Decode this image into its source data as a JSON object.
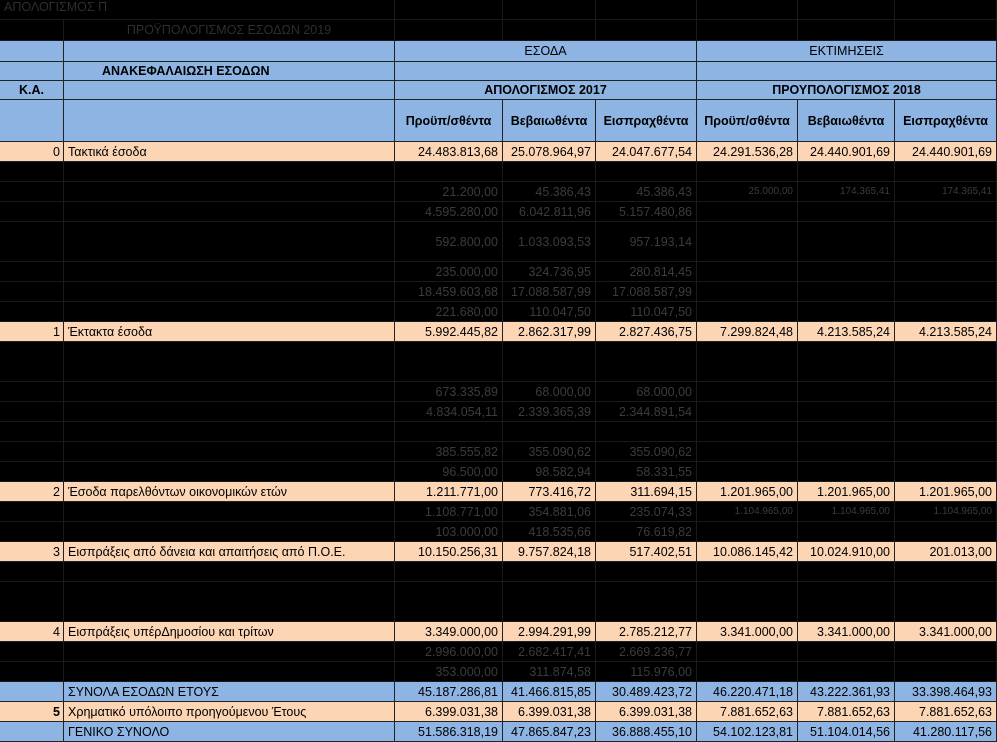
{
  "top_bar": {
    "title_left": "ΑΠΟΛΟΓΙΣΜΟΣ Π",
    "subtitle": "ΠΡΟΫΠΟΛΟΓΙΣΜΟΣ ΕΣΟΔΩΝ 2019"
  },
  "header": {
    "esoda": "ΕΣΟΔΑ",
    "ektimiseis": "ΕΚΤΙΜΗΣΕΙΣ",
    "section_title": "ΑΝΑΚΕΦΑΛΑΙΩΣΗ ΕΣΟΔΩΝ",
    "ka": "Κ.Α.",
    "apologismos": "ΑΠΟΛΟΓΙΣΜΟΣ  2017",
    "proypologismos": "ΠΡΟΥΠΟΛΟΓΙΣΜΟΣ 2018",
    "columns": [
      "Προϋπ/σθέντα",
      "Βεβαιωθέντα",
      "Εισπραχθέντα",
      "Προϋπ/σθέντα",
      "Βεβαιωθέντα",
      "Εισπραχθέντα"
    ]
  },
  "rows": [
    {
      "style": "peach",
      "ka": "0",
      "desc": "Τακτικά έσοδα",
      "vals": [
        "24.483.813,68",
        "25.078.964,97",
        "24.047.677,54",
        "24.291.536,28",
        "24.440.901,69",
        "24.440.901,69"
      ]
    },
    {
      "style": "dark",
      "ka": "",
      "desc": "",
      "vals": [
        "",
        "",
        "",
        "",
        "",
        ""
      ]
    },
    {
      "style": "dark",
      "ka": "",
      "desc": "",
      "vals": [
        "21.200,00",
        "45.386,43",
        "45.386,43",
        "25.000,00",
        "174.365,41",
        "174.365,41"
      ],
      "small_right": true
    },
    {
      "style": "dark",
      "ka": "",
      "desc": "",
      "vals": [
        "4.595.280,00",
        "6.042.811,96",
        "5.157.480,86",
        "",
        "",
        ""
      ]
    },
    {
      "style": "dark2",
      "ka": "",
      "desc": "",
      "vals": [
        "592.800,00",
        "1.033.093,53",
        "957.193,14",
        "",
        "",
        ""
      ]
    },
    {
      "style": "dark",
      "ka": "",
      "desc": "",
      "vals": [
        "235.000,00",
        "324.736,95",
        "280.814,45",
        "",
        "",
        ""
      ]
    },
    {
      "style": "dark",
      "ka": "",
      "desc": "",
      "vals": [
        "18.459.603,68",
        "17.088.587,99",
        "17.088.587,99",
        "",
        "",
        ""
      ]
    },
    {
      "style": "dark",
      "ka": "",
      "desc": "",
      "vals": [
        "221.680,00",
        "110.047,50",
        "110.047,50",
        "",
        "",
        ""
      ]
    },
    {
      "style": "peach",
      "ka": "1",
      "desc": "Έκτακτα έσοδα",
      "vals": [
        "5.992.445,82",
        "2.862.317,99",
        "2.827.436,75",
        "7.299.824,48",
        "4.213.585,24",
        "4.213.585,24"
      ]
    },
    {
      "style": "dark2",
      "ka": "",
      "desc": "",
      "vals": [
        "",
        "",
        "",
        "",
        "",
        ""
      ]
    },
    {
      "style": "dark",
      "ka": "",
      "desc": "",
      "vals": [
        "673.335,89",
        "68.000,00",
        "68.000,00",
        "",
        "",
        ""
      ]
    },
    {
      "style": "dark",
      "ka": "",
      "desc": "",
      "vals": [
        "4.834.054,11",
        "2.339.365,39",
        "2.344.891,54",
        "",
        "",
        ""
      ]
    },
    {
      "style": "dark",
      "ka": "",
      "desc": "",
      "vals": [
        "",
        "",
        "",
        "",
        "",
        ""
      ]
    },
    {
      "style": "dark",
      "ka": "",
      "desc": "",
      "vals": [
        "385.555,82",
        "355.090,62",
        "355.090,62",
        "",
        "",
        ""
      ]
    },
    {
      "style": "dark",
      "ka": "",
      "desc": "",
      "vals": [
        "96.500,00",
        "98.582,94",
        "58.331,55",
        "",
        "",
        ""
      ]
    },
    {
      "style": "peach",
      "ka": "2",
      "desc": "Έσοδα παρελθόντων οικονομικών ετών",
      "vals": [
        "1.211.771,00",
        "773.416,72",
        "311.694,15",
        "1.201.965,00",
        "1.201.965,00",
        "1.201.965,00"
      ]
    },
    {
      "style": "dark",
      "ka": "",
      "desc": "",
      "vals": [
        "1.108.771,00",
        "354.881,06",
        "235.074,33",
        "1.104.965,00",
        "1.104.965,00",
        "1.104.965,00"
      ],
      "small_right": true
    },
    {
      "style": "dark",
      "ka": "",
      "desc": "",
      "vals": [
        "103.000,00",
        "418.535,66",
        "76.619,82",
        "",
        "",
        ""
      ]
    },
    {
      "style": "peach",
      "ka": "3",
      "desc": "Εισπράξεις από δάνεια και απαιτήσεις από Π.Ο.Ε.",
      "vals": [
        "10.150.256,31",
        "9.757.824,18",
        "517.402,51",
        "10.086.145,42",
        "10.024.910,00",
        "201.013,00"
      ]
    },
    {
      "style": "dark",
      "ka": "",
      "desc": "",
      "vals": [
        "",
        "",
        "",
        "",
        "",
        ""
      ]
    },
    {
      "style": "dark2",
      "ka": "",
      "desc": "",
      "vals": [
        "",
        "",
        "",
        "",
        "",
        ""
      ]
    },
    {
      "style": "peach",
      "ka": "4",
      "desc": "Εισπράξεις υπέρΔημοσίου και τρίτων",
      "vals": [
        "3.349.000,00",
        "2.994.291,99",
        "2.785.212,77",
        "3.341.000,00",
        "3.341.000,00",
        "3.341.000,00"
      ]
    },
    {
      "style": "dark",
      "ka": "",
      "desc": "",
      "vals": [
        "2.996.000,00",
        "2.682.417,41",
        "2.669.236,77",
        "",
        "",
        ""
      ]
    },
    {
      "style": "dark",
      "ka": "",
      "desc": "",
      "vals": [
        "353.000,00",
        "311.874,58",
        "115.976,00",
        "",
        "",
        ""
      ]
    },
    {
      "style": "blue",
      "ka": "",
      "desc": "ΣΥΝΟΛΑ ΕΣΟΔΩΝ ΕΤΟΥΣ",
      "vals": [
        "45.187.286,81",
        "41.466.815,85",
        "30.489.423,72",
        "46.220.471,18",
        "43.222.361,93",
        "33.398.464,93"
      ]
    },
    {
      "style": "peach",
      "ka": "5",
      "kabold": true,
      "desc": "Χρηματικό υπόλοιπο προηγούμενου Έτους",
      "vals": [
        "6.399.031,38",
        "6.399.031,38",
        "6.399.031,38",
        "7.881.652,63",
        "7.881.652,63",
        "7.881.652,63"
      ]
    },
    {
      "style": "blue",
      "ka": "",
      "desc": "ΓΕΝΙΚΟ ΣΥΝΟΛΟ",
      "vals": [
        "51.586.318,19",
        "47.865.847,23",
        "36.888.455,10",
        "54.102.123,81",
        "51.104.014,56",
        "41.280.117,56"
      ]
    }
  ]
}
